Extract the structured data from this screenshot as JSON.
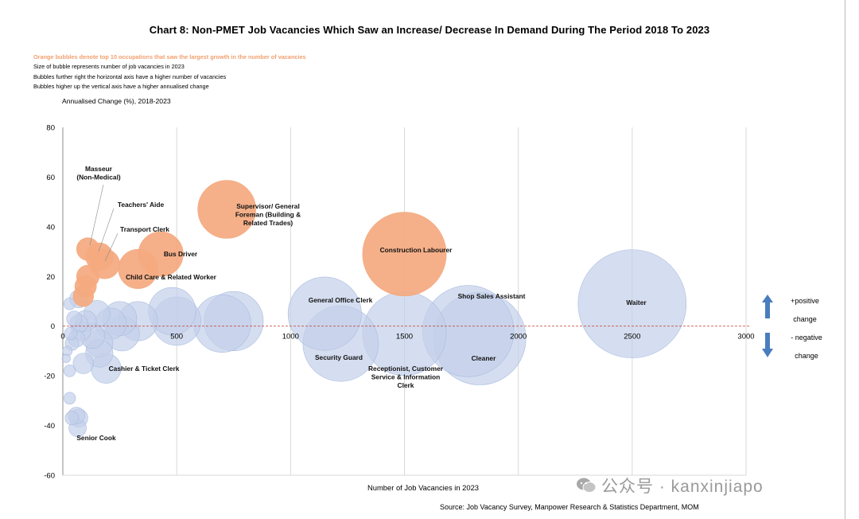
{
  "title": "Chart 8: Non-PMET Job Vacancies Which Saw an Increase/ Decrease In Demand During The Period 2018 To 2023",
  "notes": [
    {
      "text": "Orange bubbles denote top 10 occupations that saw the largest growth in the number of vacancies",
      "highlight": true
    },
    {
      "text": "Size of bubble represents number of job vacancies in 2023",
      "highlight": false
    },
    {
      "text": "Bubbles further right the horizontal axis have a higher number of vacancies",
      "highlight": false
    },
    {
      "text": "Bubbles higher up the vertical axis have a higher annualised change",
      "highlight": false
    }
  ],
  "legend": {
    "up_label_1": "+positive",
    "up_label_2": "change",
    "down_label_1": "- negative",
    "down_label_2": "change",
    "arrow_color": "#4a7dbd"
  },
  "source": "Source: Job Vacancy Survey, Manpower Research & Statistics Department, MOM",
  "watermark": "公众号 · kanxinjiapo",
  "colors": {
    "orange": "#f4a97f",
    "blue": "#c3d0ea",
    "blue_stroke": "#a9bbe0",
    "zero_line": "#c0392b",
    "grid": "#d9d9d9"
  },
  "chart_data": {
    "type": "scatter",
    "title": "Chart 8: Non-PMET Job Vacancies Which Saw an Increase/ Decrease In Demand During The Period 2018 To 2023",
    "xlabel": "Number of Job Vacancies in 2023",
    "ylabel": "Annualised Change (%), 2018-2023",
    "xlim": [
      0,
      3000
    ],
    "ylim": [
      -60,
      80
    ],
    "x_ticks": [
      0,
      500,
      1000,
      1500,
      2000,
      2500,
      3000
    ],
    "y_ticks": [
      -60,
      -40,
      -20,
      0,
      20,
      40,
      60,
      80
    ],
    "grid": "vertical",
    "zero_line": "dashed",
    "bubble_size": "number of job vacancies in 2023",
    "series": [
      {
        "group": "top growth",
        "color": "orange",
        "points": [
          {
            "x": 1500,
            "y": 29,
            "label": "Construction Labourer"
          },
          {
            "x": 720,
            "y": 47,
            "label": "Supervisor/ General Foreman (Building & Related Trades)"
          },
          {
            "x": 430,
            "y": 29,
            "label": "Bus Driver"
          },
          {
            "x": 330,
            "y": 23,
            "label": "Child Care & Related Worker"
          },
          {
            "x": 110,
            "y": 31,
            "label": "Masseur (Non-Medical)"
          },
          {
            "x": 160,
            "y": 28,
            "label": "Teachers' Aide"
          },
          {
            "x": 185,
            "y": 25,
            "label": "Transport Clerk"
          },
          {
            "x": 110,
            "y": 20,
            "label": ""
          },
          {
            "x": 100,
            "y": 16,
            "label": ""
          },
          {
            "x": 90,
            "y": 12,
            "label": ""
          }
        ]
      },
      {
        "group": "others",
        "color": "blue",
        "points": [
          {
            "x": 2500,
            "y": 9,
            "label": "Waiter"
          },
          {
            "x": 1830,
            "y": -5,
            "label": "Cleaner"
          },
          {
            "x": 1780,
            "y": -2,
            "label": "Shop Sales Assistant"
          },
          {
            "x": 1500,
            "y": -3,
            "label": "Receptionist, Customer Service & Information Clerk"
          },
          {
            "x": 1220,
            "y": -7,
            "label": "Security Guard"
          },
          {
            "x": 1150,
            "y": 5,
            "label": "General Office Clerk"
          },
          {
            "x": 750,
            "y": 2,
            "label": ""
          },
          {
            "x": 700,
            "y": 1,
            "label": ""
          },
          {
            "x": 500,
            "y": 2,
            "label": ""
          },
          {
            "x": 480,
            "y": 6,
            "label": ""
          },
          {
            "x": 330,
            "y": 2,
            "label": ""
          },
          {
            "x": 250,
            "y": 3,
            "label": ""
          },
          {
            "x": 260,
            "y": -3,
            "label": ""
          },
          {
            "x": 210,
            "y": 1,
            "label": ""
          },
          {
            "x": 150,
            "y": 5,
            "label": ""
          },
          {
            "x": 160,
            "y": -7,
            "label": ""
          },
          {
            "x": 160,
            "y": -11,
            "label": ""
          },
          {
            "x": 190,
            "y": -17,
            "label": "Cashier & Ticket Clerk"
          },
          {
            "x": 130,
            "y": -4,
            "label": ""
          },
          {
            "x": 100,
            "y": 2,
            "label": ""
          },
          {
            "x": 70,
            "y": 1,
            "label": ""
          },
          {
            "x": 80,
            "y": -2,
            "label": ""
          },
          {
            "x": 60,
            "y": -5,
            "label": ""
          },
          {
            "x": 90,
            "y": -15,
            "label": ""
          },
          {
            "x": 40,
            "y": -7,
            "label": ""
          },
          {
            "x": 35,
            "y": -3,
            "label": ""
          },
          {
            "x": 50,
            "y": 3,
            "label": ""
          },
          {
            "x": 30,
            "y": 9,
            "label": ""
          },
          {
            "x": 70,
            "y": 11,
            "label": ""
          },
          {
            "x": 20,
            "y": -10,
            "label": ""
          },
          {
            "x": 15,
            "y": -13,
            "label": ""
          },
          {
            "x": 30,
            "y": -18,
            "label": ""
          },
          {
            "x": 30,
            "y": -29,
            "label": ""
          },
          {
            "x": 60,
            "y": -36,
            "label": ""
          },
          {
            "x": 40,
            "y": -37,
            "label": ""
          },
          {
            "x": 70,
            "y": -37,
            "label": ""
          },
          {
            "x": 65,
            "y": -41,
            "label": "Senior Cook"
          }
        ]
      }
    ]
  }
}
